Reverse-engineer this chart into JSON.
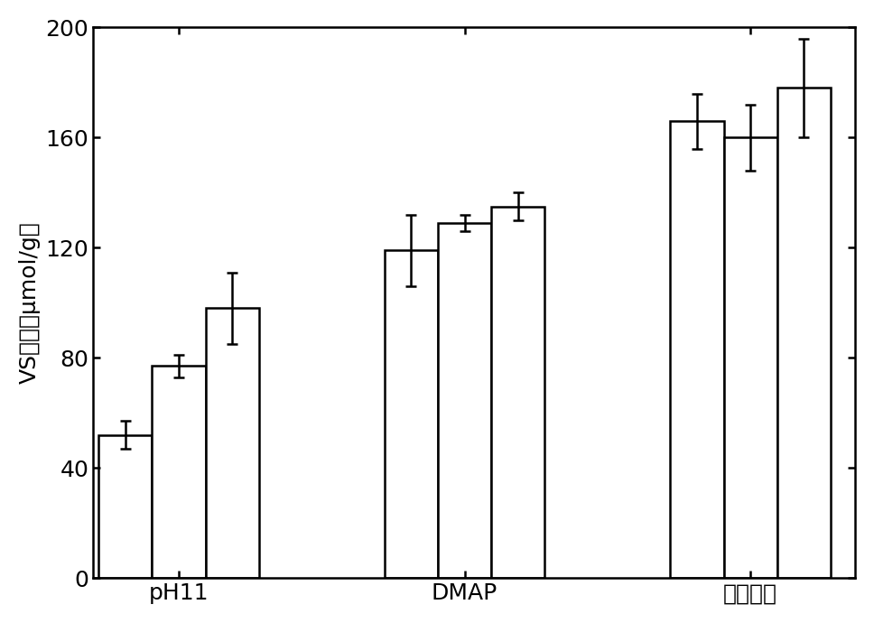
{
  "groups": [
    "pH11",
    "DMAP",
    "三苯基膛"
  ],
  "bar_values": [
    [
      52,
      77,
      98
    ],
    [
      119,
      129,
      135
    ],
    [
      166,
      160,
      178
    ]
  ],
  "bar_errors": [
    [
      5,
      4,
      13
    ],
    [
      13,
      3,
      5
    ],
    [
      10,
      12,
      18
    ]
  ],
  "ylabel": "VS密度（μmol/g）",
  "ylim": [
    0,
    200
  ],
  "yticks": [
    0,
    40,
    80,
    120,
    160,
    200
  ],
  "bar_color": "white",
  "bar_edgecolor": "black",
  "bar_width": 0.28,
  "background_color": "white",
  "linewidth": 1.8,
  "capsize": 4,
  "error_linewidth": 1.8,
  "fontsize_ylabel": 18,
  "fontsize_ticks": 18,
  "fontsize_xlabel": 18
}
